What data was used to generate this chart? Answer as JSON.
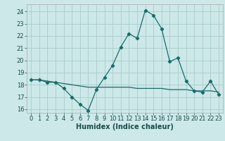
{
  "xlabel": "Humidex (Indice chaleur)",
  "bg_color": "#cce8e8",
  "grid_color": "#aacccc",
  "line_color": "#1a6b6b",
  "xlim": [
    -0.5,
    23.5
  ],
  "ylim": [
    15.7,
    24.6
  ],
  "xticks": [
    0,
    1,
    2,
    3,
    4,
    5,
    6,
    7,
    8,
    9,
    10,
    11,
    12,
    13,
    14,
    15,
    16,
    17,
    18,
    19,
    20,
    21,
    22,
    23
  ],
  "yticks": [
    16,
    17,
    18,
    19,
    20,
    21,
    22,
    23,
    24
  ],
  "curve1_x": [
    0,
    1,
    2,
    3,
    4,
    5,
    6,
    7,
    8,
    9,
    10,
    11,
    12,
    13,
    14,
    15,
    16,
    17,
    18,
    19,
    20,
    21,
    22,
    23
  ],
  "curve1_y": [
    18.4,
    18.4,
    18.2,
    18.2,
    17.7,
    17.0,
    16.4,
    15.9,
    17.6,
    18.6,
    19.6,
    21.1,
    22.2,
    21.8,
    24.1,
    23.7,
    22.6,
    19.9,
    20.2,
    18.3,
    17.5,
    17.4,
    18.3,
    17.2
  ],
  "curve2_x": [
    0,
    1,
    2,
    3,
    4,
    5,
    6,
    7,
    8,
    9,
    10,
    11,
    12,
    13,
    14,
    15,
    16,
    17,
    18,
    19,
    20,
    21,
    22,
    23
  ],
  "curve2_y": [
    18.4,
    18.4,
    18.3,
    18.2,
    18.1,
    18.0,
    17.9,
    17.8,
    17.8,
    17.8,
    17.8,
    17.8,
    17.8,
    17.7,
    17.7,
    17.7,
    17.7,
    17.6,
    17.6,
    17.6,
    17.5,
    17.5,
    17.5,
    17.4
  ],
  "xlabel_fontsize": 7,
  "tick_fontsize": 6
}
